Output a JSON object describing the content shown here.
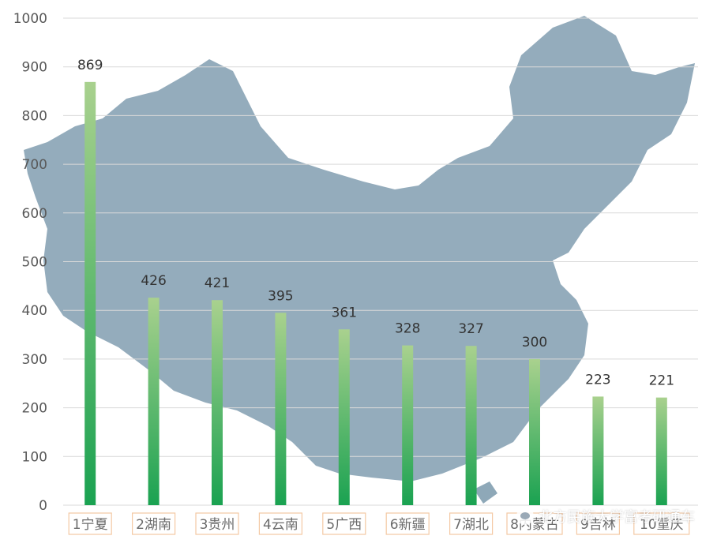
{
  "chart_data": {
    "type": "bar",
    "title": "",
    "xlabel": "",
    "ylabel": "",
    "ylim": [
      0,
      1000
    ],
    "yticks": [
      0,
      100,
      200,
      300,
      400,
      500,
      600,
      700,
      800,
      900,
      1000
    ],
    "categories": [
      "1宁夏",
      "2湖南",
      "3贵州",
      "4云南",
      "5广西",
      "6新疆",
      "7湖北",
      "8内蒙古",
      "9吉林",
      "10重庆"
    ],
    "values": [
      869,
      426,
      421,
      395,
      361,
      328,
      327,
      300,
      223,
      221
    ],
    "grid": true,
    "data_labels": true,
    "colors": {
      "bar_top": "#a9d18e",
      "bar_bottom": "#1aa251",
      "map": "#8ea8b8",
      "grid": "#d9d9d9"
    }
  },
  "watermark": {
    "icon": "wechat-icon",
    "text": "北方民族大学富考研通车"
  }
}
